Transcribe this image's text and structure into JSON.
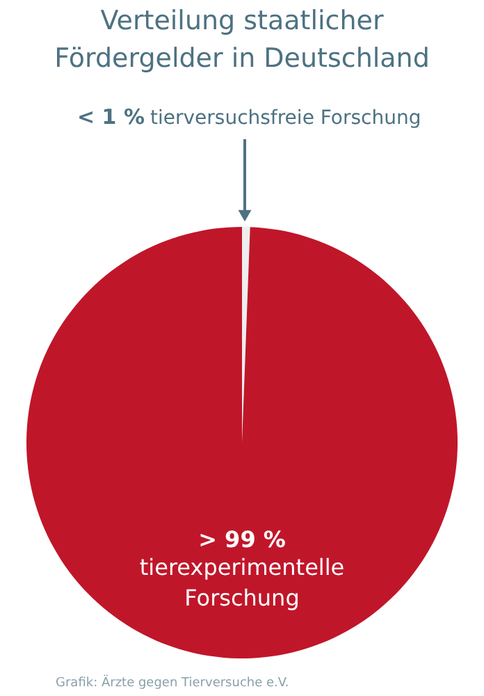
{
  "chart_data": {
    "type": "pie",
    "title": "Verteilung staatlicher\nFördergelder  in Deutschland",
    "categories": [
      "tierversuchsfreie Forschung",
      "tierexperimentelle Forschung"
    ],
    "values": [
      0.6,
      99.4
    ],
    "value_labels": [
      "< 1 %",
      "> 99 %"
    ],
    "colors": [
      "#eeeeee",
      "#c0162a"
    ],
    "annotations": [
      "Grafik: Ärzte gegen Tierversuche e.V."
    ]
  }
}
